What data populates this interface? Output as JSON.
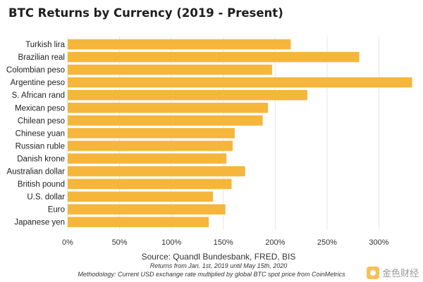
{
  "chart_data": {
    "type": "bar",
    "orientation": "horizontal",
    "title": "BTC Returns by Currency (2019 - Present)",
    "categories": [
      "Turkish lira",
      "Brazilian real",
      "Colombian peso",
      "Argentine peso",
      "S. African rand",
      "Mexican peso",
      "Chilean peso",
      "Chinese yuan",
      "Russian ruble",
      "Danish krone",
      "Australian dollar",
      "British pound",
      "U.S. dollar",
      "Euro",
      "Japanese yen"
    ],
    "values": [
      215,
      281,
      197,
      332,
      231,
      193,
      188,
      161,
      159,
      153,
      171,
      158,
      140,
      152,
      136
    ],
    "xlim": [
      0,
      335
    ],
    "xticks": [
      0,
      50,
      100,
      150,
      200,
      250,
      300
    ],
    "xtick_labels": [
      "0%",
      "50%",
      "100%",
      "150%",
      "200%",
      "250%",
      "300%"
    ],
    "grid": true,
    "bar_color": "#f5b63b"
  },
  "source": "Source: Quandl Bundesbank, FRED, BIS",
  "note": "Returns from Jan. 1st, 2019 until May 15th, 2020",
  "methodology": "Methodology: Current USD exchange rate multiplied by global BTC spot price from CoinMetrics",
  "watermark": "金色财经"
}
